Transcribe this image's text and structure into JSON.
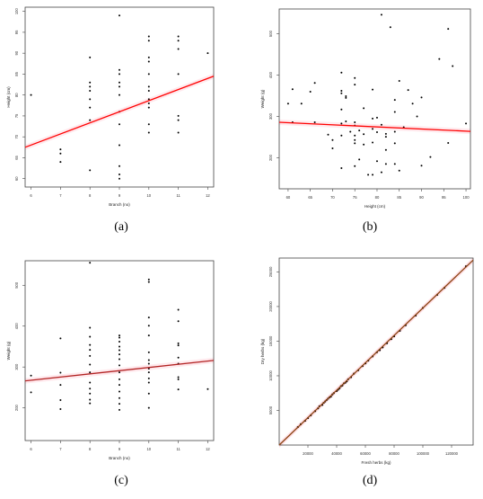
{
  "colors": {
    "point": "#000000",
    "fit_line_a": "#ff0000",
    "fit_line_b": "#ff0000",
    "fit_line_c": "#b22222",
    "fit_line_d": "#8b4513",
    "ci_band": "#ffc0cb"
  },
  "panel_labels": [
    "(a)",
    "(b)",
    "(c)",
    "(d)"
  ],
  "chart_data": [
    {
      "type": "scatter",
      "panel": "(a)",
      "xlabel": "Branch (no)",
      "ylabel": "Height (cm)",
      "xlim": [
        5.8,
        12.2
      ],
      "ylim": [
        58,
        101
      ],
      "xticks": [
        6,
        7,
        8,
        9,
        10,
        11,
        12
      ],
      "yticks": [
        60,
        65,
        70,
        75,
        80,
        85,
        90,
        95,
        100
      ],
      "fit_line": {
        "x": [
          5.8,
          12.2
        ],
        "y": [
          67.5,
          84.5
        ]
      },
      "points": [
        [
          6,
          80
        ],
        [
          7,
          67
        ],
        [
          7,
          66
        ],
        [
          7,
          64
        ],
        [
          8,
          89
        ],
        [
          8,
          83
        ],
        [
          8,
          82
        ],
        [
          8,
          81
        ],
        [
          8,
          79
        ],
        [
          8,
          77
        ],
        [
          8,
          74
        ],
        [
          8,
          62
        ],
        [
          9,
          99
        ],
        [
          9,
          86
        ],
        [
          9,
          85
        ],
        [
          9,
          83
        ],
        [
          9,
          82
        ],
        [
          9,
          80
        ],
        [
          9,
          76
        ],
        [
          9,
          73
        ],
        [
          9,
          68
        ],
        [
          9,
          63
        ],
        [
          9,
          61
        ],
        [
          9,
          60
        ],
        [
          10,
          94
        ],
        [
          10,
          93
        ],
        [
          10,
          89
        ],
        [
          10,
          88
        ],
        [
          10,
          85
        ],
        [
          10,
          82
        ],
        [
          10,
          81
        ],
        [
          10,
          79
        ],
        [
          10,
          78
        ],
        [
          10,
          77
        ],
        [
          10,
          73
        ],
        [
          10,
          71
        ],
        [
          11,
          94
        ],
        [
          11,
          93
        ],
        [
          11,
          91
        ],
        [
          11,
          85
        ],
        [
          11,
          75
        ],
        [
          11,
          74
        ],
        [
          11,
          71
        ],
        [
          12,
          90
        ]
      ]
    },
    {
      "type": "scatter",
      "panel": "(b)",
      "xlabel": "Height (cm)",
      "ylabel": "Weight (g)",
      "xlim": [
        58,
        101
      ],
      "ylim": [
        125,
        560
      ],
      "xticks": [
        60,
        65,
        70,
        75,
        80,
        85,
        90,
        95,
        100
      ],
      "yticks": [
        200,
        300,
        400,
        500
      ],
      "fit_line": {
        "x": [
          58,
          101
        ],
        "y": [
          286,
          264
        ]
      },
      "points": [
        [
          60,
          331
        ],
        [
          61,
          366
        ],
        [
          61,
          286
        ],
        [
          63,
          331
        ],
        [
          65,
          360
        ],
        [
          66,
          381
        ],
        [
          66,
          286
        ],
        [
          69,
          256
        ],
        [
          70,
          243
        ],
        [
          70,
          223
        ],
        [
          72,
          406
        ],
        [
          72,
          362
        ],
        [
          72,
          356
        ],
        [
          72,
          317
        ],
        [
          72,
          283
        ],
        [
          72,
          254
        ],
        [
          72,
          175
        ],
        [
          73,
          349
        ],
        [
          73,
          345
        ],
        [
          73,
          288
        ],
        [
          74,
          263
        ],
        [
          75,
          393
        ],
        [
          75,
          377
        ],
        [
          75,
          286
        ],
        [
          75,
          278
        ],
        [
          75,
          254
        ],
        [
          75,
          243
        ],
        [
          75,
          235
        ],
        [
          75,
          180
        ],
        [
          76,
          266
        ],
        [
          76,
          196
        ],
        [
          77,
          320
        ],
        [
          77,
          257
        ],
        [
          77,
          232
        ],
        [
          78,
          159
        ],
        [
          79,
          365
        ],
        [
          79,
          295
        ],
        [
          79,
          270
        ],
        [
          79,
          237
        ],
        [
          79,
          159
        ],
        [
          80,
          297
        ],
        [
          80,
          262
        ],
        [
          80,
          192
        ],
        [
          81,
          546
        ],
        [
          81,
          280
        ],
        [
          81,
          165
        ],
        [
          82,
          258
        ],
        [
          82,
          251
        ],
        [
          82,
          219
        ],
        [
          82,
          185
        ],
        [
          83,
          516
        ],
        [
          84,
          340
        ],
        [
          84,
          311
        ],
        [
          84,
          263
        ],
        [
          84,
          235
        ],
        [
          84,
          185
        ],
        [
          85,
          386
        ],
        [
          85,
          169
        ],
        [
          86,
          274
        ],
        [
          87,
          364
        ],
        [
          88,
          331
        ],
        [
          89,
          300
        ],
        [
          90,
          181
        ],
        [
          90,
          346
        ],
        [
          92,
          202
        ],
        [
          94,
          439
        ],
        [
          96,
          512
        ],
        [
          96,
          236
        ],
        [
          97,
          422
        ],
        [
          100,
          283
        ]
      ]
    },
    {
      "type": "scatter",
      "panel": "(c)",
      "xlabel": "Branch (no)",
      "ylabel": "Weight (g)",
      "xlim": [
        5.8,
        12.2
      ],
      "ylim": [
        120,
        560
      ],
      "xticks": [
        6,
        7,
        8,
        9,
        10,
        11,
        12
      ],
      "yticks": [
        200,
        300,
        400,
        500
      ],
      "fit_line": {
        "x": [
          5.8,
          12.2
        ],
        "y": [
          266,
          316
        ]
      },
      "points": [
        [
          6,
          279
        ],
        [
          6,
          238
        ],
        [
          7,
          370
        ],
        [
          7,
          286
        ],
        [
          7,
          256
        ],
        [
          7,
          219
        ],
        [
          7,
          197
        ],
        [
          8,
          555
        ],
        [
          8,
          396
        ],
        [
          8,
          374
        ],
        [
          8,
          354
        ],
        [
          8,
          342
        ],
        [
          8,
          327
        ],
        [
          8,
          306
        ],
        [
          8,
          287
        ],
        [
          8,
          262
        ],
        [
          8,
          247
        ],
        [
          8,
          235
        ],
        [
          8,
          220
        ],
        [
          8,
          211
        ],
        [
          9,
          377
        ],
        [
          9,
          372
        ],
        [
          9,
          362
        ],
        [
          9,
          350
        ],
        [
          9,
          341
        ],
        [
          9,
          331
        ],
        [
          9,
          319
        ],
        [
          9,
          304
        ],
        [
          9,
          287
        ],
        [
          9,
          270
        ],
        [
          9,
          256
        ],
        [
          9,
          240
        ],
        [
          9,
          224
        ],
        [
          9,
          210
        ],
        [
          9,
          195
        ],
        [
          10,
          514
        ],
        [
          10,
          508
        ],
        [
          10,
          421
        ],
        [
          10,
          401
        ],
        [
          10,
          377
        ],
        [
          10,
          336
        ],
        [
          10,
          317
        ],
        [
          10,
          308
        ],
        [
          10,
          296
        ],
        [
          10,
          287
        ],
        [
          10,
          272
        ],
        [
          10,
          262
        ],
        [
          10,
          235
        ],
        [
          10,
          200
        ],
        [
          11,
          440
        ],
        [
          11,
          412
        ],
        [
          11,
          358
        ],
        [
          11,
          353
        ],
        [
          11,
          323
        ],
        [
          11,
          308
        ],
        [
          11,
          275
        ],
        [
          11,
          270
        ],
        [
          11,
          245
        ],
        [
          12,
          246
        ]
      ]
    },
    {
      "type": "scatter",
      "panel": "(d)",
      "xlabel": "Fresh herbs (kg)",
      "ylabel": "Dry herbs (kg)",
      "xlim": [
        0,
        135000
      ],
      "ylim": [
        0,
        27000
      ],
      "xticks": [
        20000,
        40000,
        60000,
        80000,
        100000,
        120000
      ],
      "yticks": [
        5000,
        10000,
        15000,
        20000,
        25000
      ],
      "fit_line": {
        "x": [
          0,
          135000
        ],
        "y": [
          0,
          26700
        ]
      },
      "points": [
        [
          13000,
          2600
        ],
        [
          15000,
          3000
        ],
        [
          18000,
          3500
        ],
        [
          20000,
          3900
        ],
        [
          22000,
          4300
        ],
        [
          25000,
          4900
        ],
        [
          27000,
          5300
        ],
        [
          28000,
          5600
        ],
        [
          30000,
          5800
        ],
        [
          31000,
          6100
        ],
        [
          32000,
          6300
        ],
        [
          33000,
          6500
        ],
        [
          34000,
          6700
        ],
        [
          35000,
          6900
        ],
        [
          36000,
          7000
        ],
        [
          37000,
          7300
        ],
        [
          38000,
          7500
        ],
        [
          40000,
          7800
        ],
        [
          41000,
          8000
        ],
        [
          42000,
          8200
        ],
        [
          43000,
          8500
        ],
        [
          44000,
          8600
        ],
        [
          45000,
          8900
        ],
        [
          46000,
          9000
        ],
        [
          47000,
          9200
        ],
        [
          48000,
          9500
        ],
        [
          50000,
          9800
        ],
        [
          52000,
          10300
        ],
        [
          55000,
          10800
        ],
        [
          58000,
          11400
        ],
        [
          60000,
          11800
        ],
        [
          62000,
          12200
        ],
        [
          65000,
          12800
        ],
        [
          68000,
          13400
        ],
        [
          70000,
          13700
        ],
        [
          72000,
          14100
        ],
        [
          75000,
          14700
        ],
        [
          78000,
          15300
        ],
        [
          80000,
          15700
        ],
        [
          84000,
          16500
        ],
        [
          88000,
          17300
        ],
        [
          95000,
          18700
        ],
        [
          100000,
          19800
        ],
        [
          110000,
          21700
        ],
        [
          115000,
          22700
        ],
        [
          130000,
          25800
        ]
      ]
    }
  ]
}
